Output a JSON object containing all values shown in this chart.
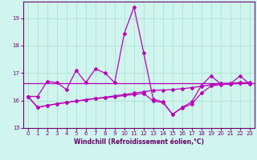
{
  "xlabel": "Windchill (Refroidissement éolien,°C)",
  "background_color": "#cff5ee",
  "grid_color": "#aaddcc",
  "line_color": "#bb00bb",
  "xlim": [
    -0.5,
    23.5
  ],
  "ylim": [
    15,
    19.6
  ],
  "yticks": [
    15,
    16,
    17,
    18,
    19
  ],
  "xticks": [
    0,
    1,
    2,
    3,
    4,
    5,
    6,
    7,
    8,
    9,
    10,
    11,
    12,
    13,
    14,
    15,
    16,
    17,
    18,
    19,
    20,
    21,
    22,
    23
  ],
  "series1_x": [
    0,
    1,
    2,
    3,
    4,
    5,
    6,
    7,
    8,
    9,
    10,
    11,
    12,
    13,
    14,
    15,
    16,
    17,
    18,
    19,
    20,
    21,
    22,
    23
  ],
  "series1_y": [
    16.15,
    16.15,
    16.7,
    16.65,
    16.4,
    17.1,
    16.65,
    17.15,
    17.0,
    16.65,
    18.45,
    19.4,
    17.75,
    16.05,
    15.95,
    15.5,
    15.75,
    15.95,
    16.55,
    16.9,
    16.6,
    16.6,
    16.9,
    16.6
  ],
  "series2_x": [
    0,
    1,
    2,
    3,
    4,
    5,
    6,
    7,
    8,
    9,
    10,
    11,
    12,
    13,
    14,
    15,
    16,
    17,
    18,
    19,
    20,
    21,
    22,
    23
  ],
  "series2_y": [
    16.15,
    15.75,
    15.82,
    15.88,
    15.93,
    15.98,
    16.03,
    16.08,
    16.12,
    16.17,
    16.22,
    16.27,
    16.32,
    16.37,
    16.38,
    16.4,
    16.43,
    16.47,
    16.52,
    16.57,
    16.62,
    16.63,
    16.65,
    16.65
  ],
  "series3_x": [
    0,
    1,
    2,
    3,
    4,
    5,
    6,
    7,
    8,
    9,
    10,
    11,
    12,
    13,
    14,
    15,
    16,
    17,
    18,
    19,
    20,
    21,
    22,
    23
  ],
  "series3_y": [
    16.15,
    15.75,
    15.82,
    15.88,
    15.93,
    15.98,
    16.03,
    16.07,
    16.1,
    16.14,
    16.18,
    16.22,
    16.26,
    15.98,
    15.93,
    15.5,
    15.73,
    15.87,
    16.27,
    16.53,
    16.58,
    16.6,
    16.62,
    16.62
  ],
  "flat_line_y": 16.62,
  "marker_size": 2.0
}
